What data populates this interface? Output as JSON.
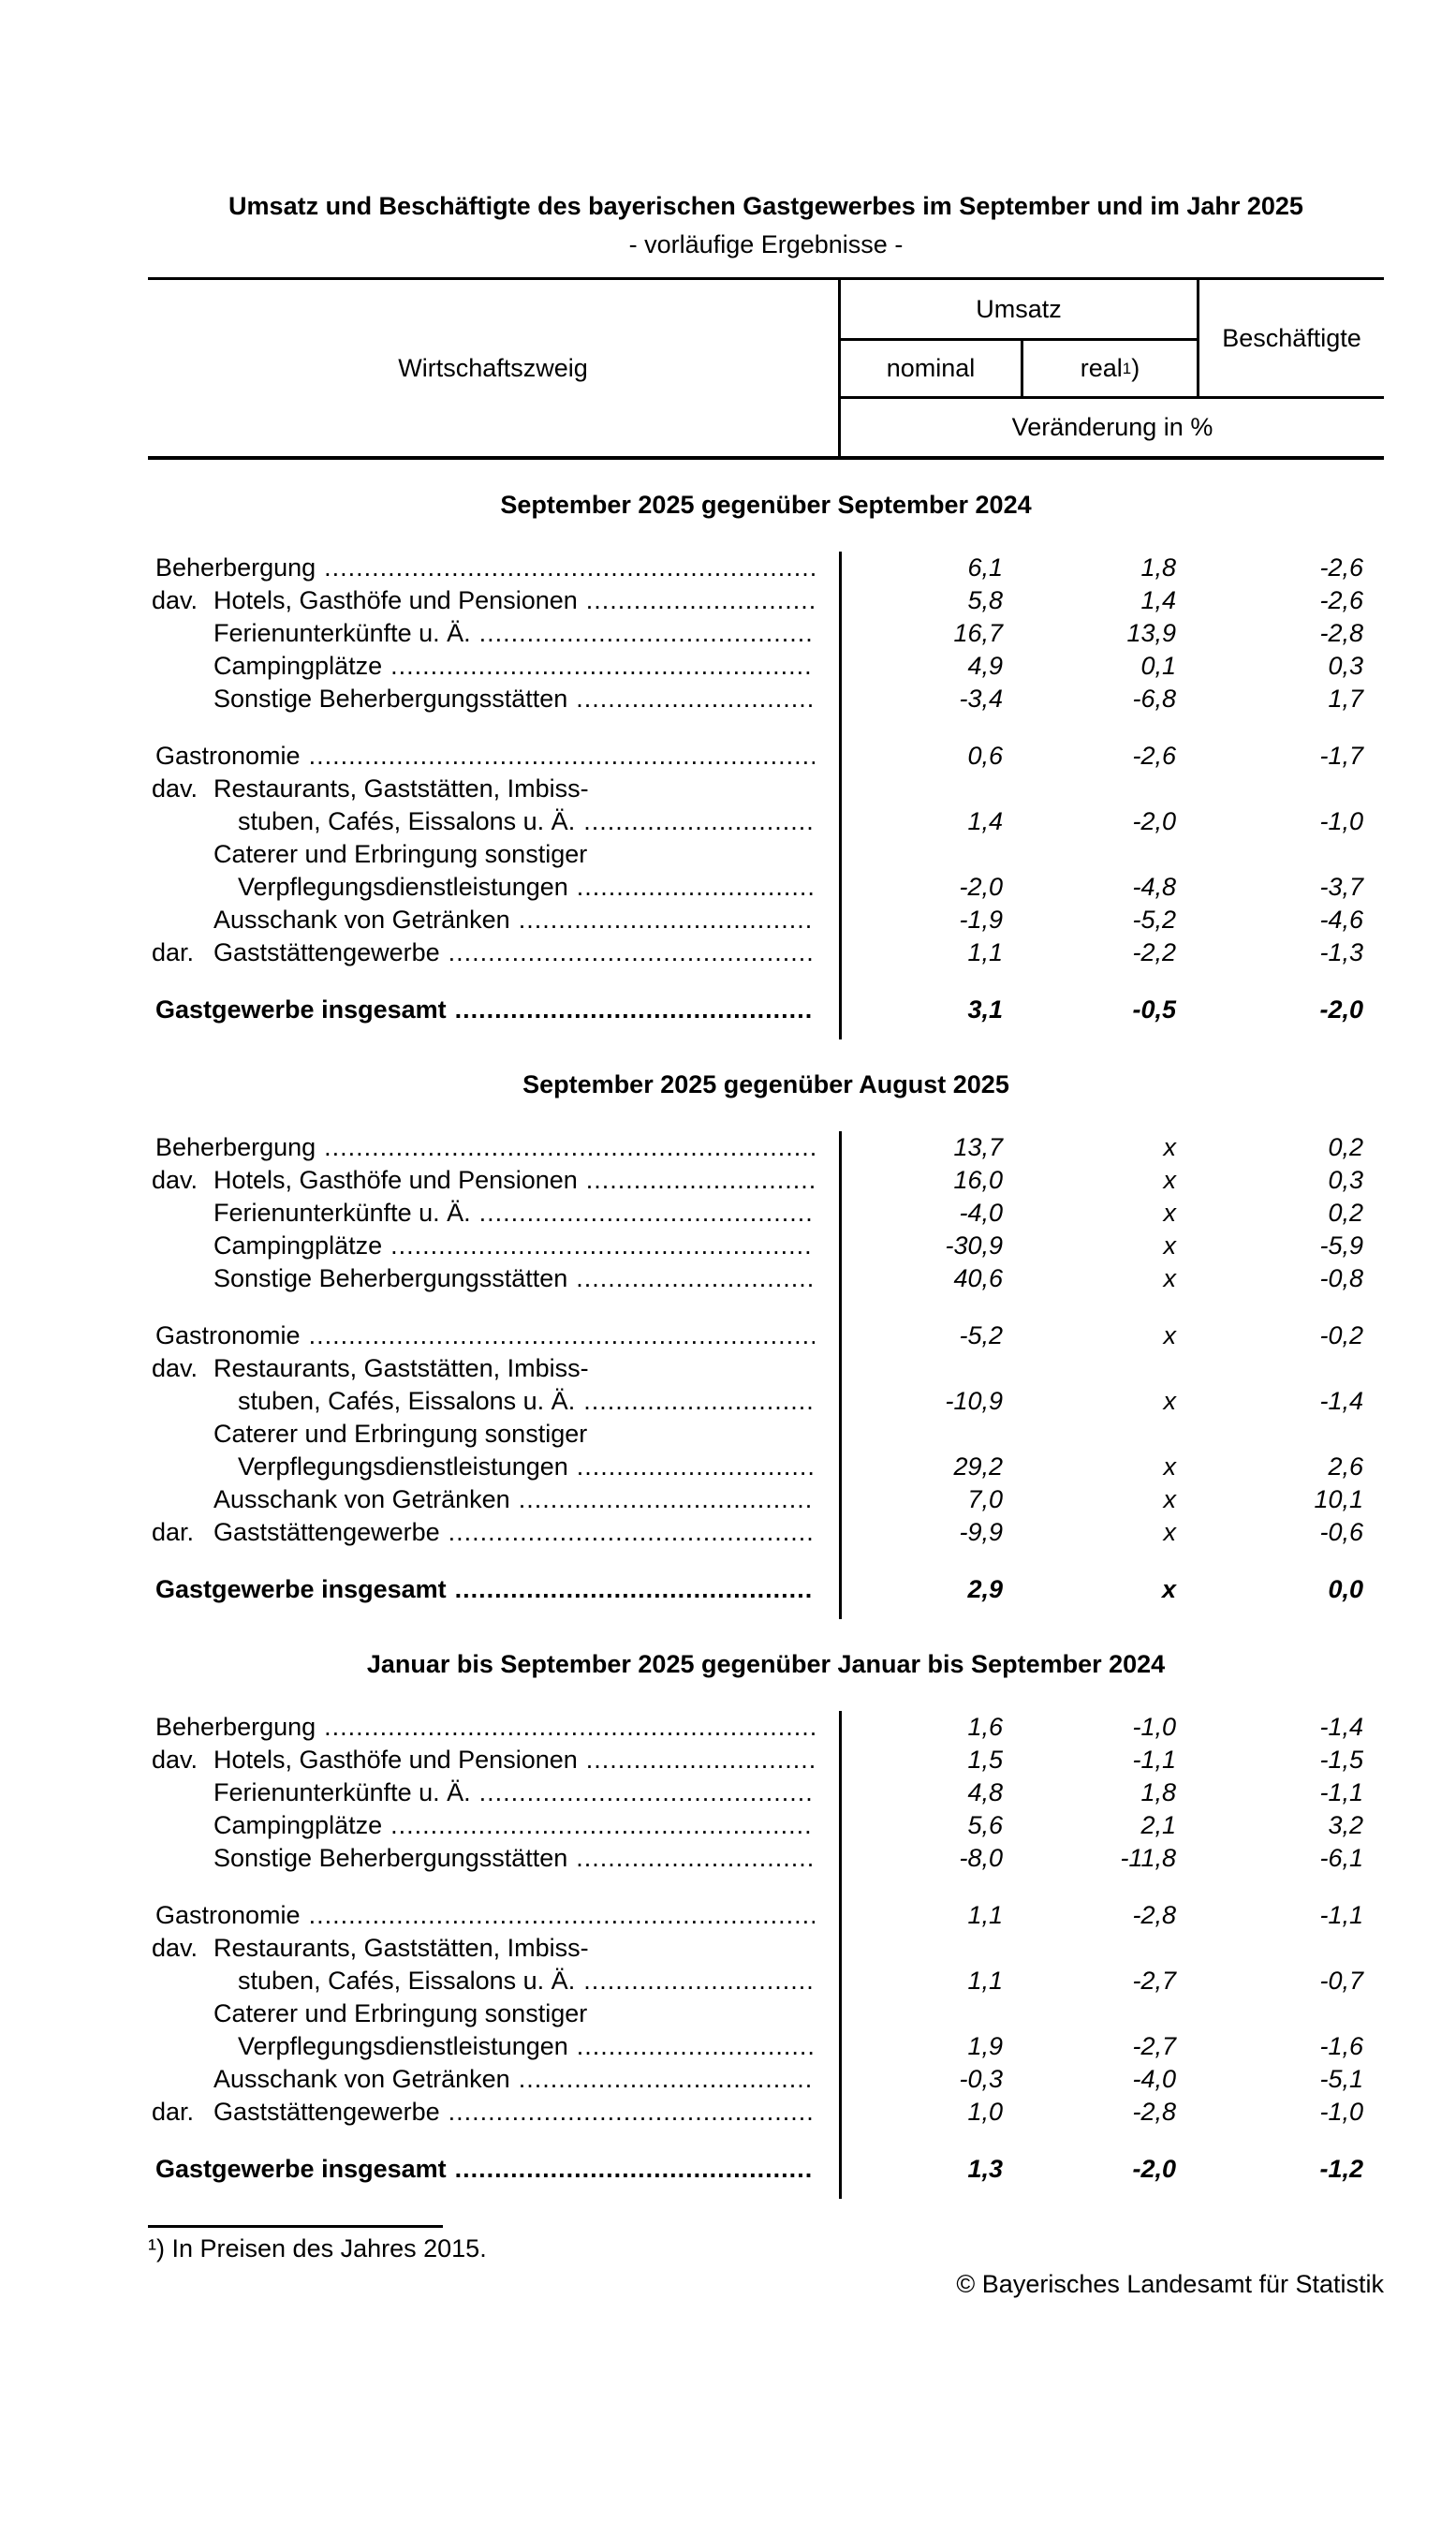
{
  "page": {
    "title": "Umsatz und Beschäftigte des bayerischen Gastgewerbes im September und im Jahr 2025",
    "subtitle": "- vorläufige Ergebnisse -",
    "footnote": "¹) In Preisen des Jahres 2015.",
    "copyright": "© Bayerisches Landesamt für Statistik",
    "colors": {
      "text": "#000000",
      "background": "#ffffff",
      "rule": "#000000"
    }
  },
  "table_header": {
    "branch": "Wirtschaftszweig",
    "umsatz": "Umsatz",
    "nominal": "nominal",
    "real": "real",
    "real_sup": "1",
    "real_close": ")",
    "beschaeftigte": "Beschäftigte",
    "change_note": "Veränderung in %",
    "value_columns": [
      "nominal",
      "real",
      "beschaeftigte"
    ]
  },
  "sections": [
    {
      "title": "September 2025 gegenüber September 2024",
      "rows": [
        {
          "indent": 0,
          "prefix": "",
          "label": "Beherbergung",
          "leader": true,
          "values": [
            "6,1",
            "1,8",
            "-2,6"
          ],
          "bold": false,
          "gap_before": false
        },
        {
          "indent": 1,
          "prefix": "dav.",
          "label": "Hotels, Gasthöfe und Pensionen",
          "leader": true,
          "values": [
            "5,8",
            "1,4",
            "-2,6"
          ],
          "bold": false,
          "gap_before": false
        },
        {
          "indent": 1,
          "prefix": "",
          "label": "Ferienunterkünfte u. Ä.",
          "leader": true,
          "values": [
            "16,7",
            "13,9",
            "-2,8"
          ],
          "bold": false,
          "gap_before": false
        },
        {
          "indent": 1,
          "prefix": "",
          "label": "Campingplätze",
          "leader": true,
          "values": [
            "4,9",
            "0,1",
            "0,3"
          ],
          "bold": false,
          "gap_before": false
        },
        {
          "indent": 1,
          "prefix": "",
          "label": "Sonstige Beherbergungsstätten",
          "leader": true,
          "values": [
            "-3,4",
            "-6,8",
            "1,7"
          ],
          "bold": false,
          "gap_before": false
        },
        {
          "indent": 0,
          "prefix": "",
          "label": "Gastronomie",
          "leader": true,
          "values": [
            "0,6",
            "-2,6",
            "-1,7"
          ],
          "bold": false,
          "gap_before": true
        },
        {
          "indent": 1,
          "prefix": "dav.",
          "label": "Restaurants, Gaststätten, Imbiss-",
          "leader": false,
          "values": null,
          "bold": false,
          "gap_before": false
        },
        {
          "indent": 2,
          "prefix": "",
          "label": "stuben, Cafés, Eissalons u. Ä.",
          "leader": true,
          "values": [
            "1,4",
            "-2,0",
            "-1,0"
          ],
          "bold": false,
          "gap_before": false
        },
        {
          "indent": 1,
          "prefix": "",
          "label": "Caterer und Erbringung sonstiger",
          "leader": false,
          "values": null,
          "bold": false,
          "gap_before": false
        },
        {
          "indent": 2,
          "prefix": "",
          "label": "Verpflegungsdienstleistungen",
          "leader": true,
          "values": [
            "-2,0",
            "-4,8",
            "-3,7"
          ],
          "bold": false,
          "gap_before": false
        },
        {
          "indent": 1,
          "prefix": "",
          "label": "Ausschank von Getränken",
          "leader": true,
          "values": [
            "-1,9",
            "-5,2",
            "-4,6"
          ],
          "bold": false,
          "gap_before": false
        },
        {
          "indent": 1,
          "prefix": "dar.",
          "label": "Gaststättengewerbe",
          "leader": true,
          "values": [
            "1,1",
            "-2,2",
            "-1,3"
          ],
          "bold": false,
          "gap_before": false
        },
        {
          "indent": 0,
          "prefix": "",
          "label": "Gastgewerbe insgesamt",
          "leader": true,
          "values": [
            "3,1",
            "-0,5",
            "-2,0"
          ],
          "bold": true,
          "gap_before": true
        }
      ]
    },
    {
      "title": "September 2025 gegenüber August 2025",
      "rows": [
        {
          "indent": 0,
          "prefix": "",
          "label": "Beherbergung",
          "leader": true,
          "values": [
            "13,7",
            "x",
            "0,2"
          ],
          "bold": false,
          "gap_before": false
        },
        {
          "indent": 1,
          "prefix": "dav.",
          "label": "Hotels, Gasthöfe und Pensionen",
          "leader": true,
          "values": [
            "16,0",
            "x",
            "0,3"
          ],
          "bold": false,
          "gap_before": false
        },
        {
          "indent": 1,
          "prefix": "",
          "label": "Ferienunterkünfte u. Ä.",
          "leader": true,
          "values": [
            "-4,0",
            "x",
            "0,2"
          ],
          "bold": false,
          "gap_before": false
        },
        {
          "indent": 1,
          "prefix": "",
          "label": "Campingplätze",
          "leader": true,
          "values": [
            "-30,9",
            "x",
            "-5,9"
          ],
          "bold": false,
          "gap_before": false
        },
        {
          "indent": 1,
          "prefix": "",
          "label": "Sonstige Beherbergungsstätten",
          "leader": true,
          "values": [
            "40,6",
            "x",
            "-0,8"
          ],
          "bold": false,
          "gap_before": false
        },
        {
          "indent": 0,
          "prefix": "",
          "label": "Gastronomie",
          "leader": true,
          "values": [
            "-5,2",
            "x",
            "-0,2"
          ],
          "bold": false,
          "gap_before": true
        },
        {
          "indent": 1,
          "prefix": "dav.",
          "label": "Restaurants, Gaststätten, Imbiss-",
          "leader": false,
          "values": null,
          "bold": false,
          "gap_before": false
        },
        {
          "indent": 2,
          "prefix": "",
          "label": "stuben, Cafés, Eissalons u. Ä.",
          "leader": true,
          "values": [
            "-10,9",
            "x",
            "-1,4"
          ],
          "bold": false,
          "gap_before": false
        },
        {
          "indent": 1,
          "prefix": "",
          "label": "Caterer und Erbringung sonstiger",
          "leader": false,
          "values": null,
          "bold": false,
          "gap_before": false
        },
        {
          "indent": 2,
          "prefix": "",
          "label": "Verpflegungsdienstleistungen",
          "leader": true,
          "values": [
            "29,2",
            "x",
            "2,6"
          ],
          "bold": false,
          "gap_before": false
        },
        {
          "indent": 1,
          "prefix": "",
          "label": "Ausschank von Getränken",
          "leader": true,
          "values": [
            "7,0",
            "x",
            "10,1"
          ],
          "bold": false,
          "gap_before": false
        },
        {
          "indent": 1,
          "prefix": "dar.",
          "label": "Gaststättengewerbe",
          "leader": true,
          "values": [
            "-9,9",
            "x",
            "-0,6"
          ],
          "bold": false,
          "gap_before": false
        },
        {
          "indent": 0,
          "prefix": "",
          "label": "Gastgewerbe insgesamt",
          "leader": true,
          "values": [
            "2,9",
            "x",
            "0,0"
          ],
          "bold": true,
          "gap_before": true
        }
      ]
    },
    {
      "title": "Januar bis September 2025 gegenüber Januar bis September 2024",
      "rows": [
        {
          "indent": 0,
          "prefix": "",
          "label": "Beherbergung",
          "leader": true,
          "values": [
            "1,6",
            "-1,0",
            "-1,4"
          ],
          "bold": false,
          "gap_before": false
        },
        {
          "indent": 1,
          "prefix": "dav.",
          "label": "Hotels, Gasthöfe und Pensionen",
          "leader": true,
          "values": [
            "1,5",
            "-1,1",
            "-1,5"
          ],
          "bold": false,
          "gap_before": false
        },
        {
          "indent": 1,
          "prefix": "",
          "label": "Ferienunterkünfte u. Ä.",
          "leader": true,
          "values": [
            "4,8",
            "1,8",
            "-1,1"
          ],
          "bold": false,
          "gap_before": false
        },
        {
          "indent": 1,
          "prefix": "",
          "label": "Campingplätze",
          "leader": true,
          "values": [
            "5,6",
            "2,1",
            "3,2"
          ],
          "bold": false,
          "gap_before": false
        },
        {
          "indent": 1,
          "prefix": "",
          "label": "Sonstige Beherbergungsstätten",
          "leader": true,
          "values": [
            "-8,0",
            "-11,8",
            "-6,1"
          ],
          "bold": false,
          "gap_before": false
        },
        {
          "indent": 0,
          "prefix": "",
          "label": "Gastronomie",
          "leader": true,
          "values": [
            "1,1",
            "-2,8",
            "-1,1"
          ],
          "bold": false,
          "gap_before": true
        },
        {
          "indent": 1,
          "prefix": "dav.",
          "label": "Restaurants, Gaststätten, Imbiss-",
          "leader": false,
          "values": null,
          "bold": false,
          "gap_before": false
        },
        {
          "indent": 2,
          "prefix": "",
          "label": "stuben, Cafés, Eissalons u. Ä.",
          "leader": true,
          "values": [
            "1,1",
            "-2,7",
            "-0,7"
          ],
          "bold": false,
          "gap_before": false
        },
        {
          "indent": 1,
          "prefix": "",
          "label": "Caterer und Erbringung sonstiger",
          "leader": false,
          "values": null,
          "bold": false,
          "gap_before": false
        },
        {
          "indent": 2,
          "prefix": "",
          "label": "Verpflegungsdienstleistungen",
          "leader": true,
          "values": [
            "1,9",
            "-2,7",
            "-1,6"
          ],
          "bold": false,
          "gap_before": false
        },
        {
          "indent": 1,
          "prefix": "",
          "label": "Ausschank von Getränken",
          "leader": true,
          "values": [
            "-0,3",
            "-4,0",
            "-5,1"
          ],
          "bold": false,
          "gap_before": false
        },
        {
          "indent": 1,
          "prefix": "dar.",
          "label": "Gaststättengewerbe",
          "leader": true,
          "values": [
            "1,0",
            "-2,8",
            "-1,0"
          ],
          "bold": false,
          "gap_before": false
        },
        {
          "indent": 0,
          "prefix": "",
          "label": "Gastgewerbe insgesamt",
          "leader": true,
          "values": [
            "1,3",
            "-2,0",
            "-1,2"
          ],
          "bold": true,
          "gap_before": true
        }
      ]
    }
  ]
}
